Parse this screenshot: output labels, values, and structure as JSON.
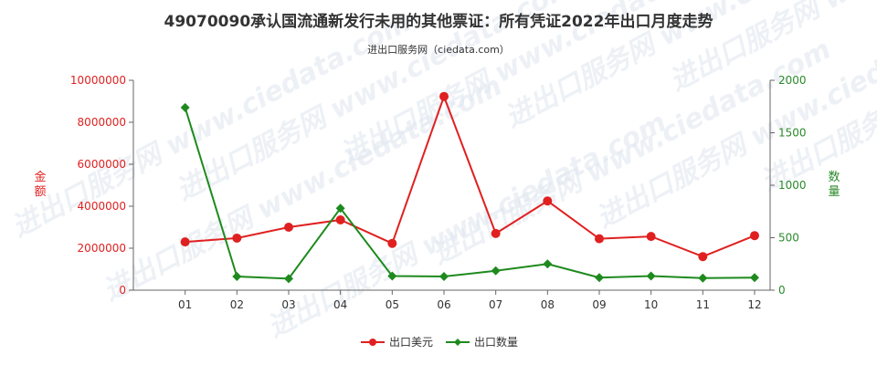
{
  "chart_data": {
    "type": "line",
    "title": "49070090承认国流通新发行未用的其他票证：所有凭证2022年出口月度走势",
    "subtitle": "进出口服务网（ciedata.com）",
    "categories": [
      "01",
      "02",
      "03",
      "04",
      "05",
      "06",
      "07",
      "08",
      "09",
      "10",
      "11",
      "12"
    ],
    "ylabel_left": "金额",
    "ylabel_right": "数量",
    "ylim_left": [
      0,
      10000000
    ],
    "ylim_right": [
      0,
      2000
    ],
    "yticks_left": [
      0,
      2000000,
      4000000,
      6000000,
      8000000,
      10000000
    ],
    "yticks_right": [
      0,
      500,
      1000,
      1500,
      2000
    ],
    "series": [
      {
        "name": "出口美元",
        "axis": "left",
        "color": "#e02020",
        "marker": "circle",
        "values": [
          2300000,
          2480000,
          3000000,
          3350000,
          2230000,
          9230000,
          2700000,
          4250000,
          2450000,
          2560000,
          1600000,
          2600000
        ]
      },
      {
        "name": "出口数量",
        "axis": "right",
        "color": "#1e8a1e",
        "marker": "diamond",
        "values": [
          1740,
          130,
          110,
          780,
          135,
          130,
          185,
          250,
          120,
          135,
          115,
          120
        ]
      }
    ],
    "grid": false,
    "legend_position": "bottom-center",
    "watermark": "进出口服务网 www.ciedata.com"
  }
}
